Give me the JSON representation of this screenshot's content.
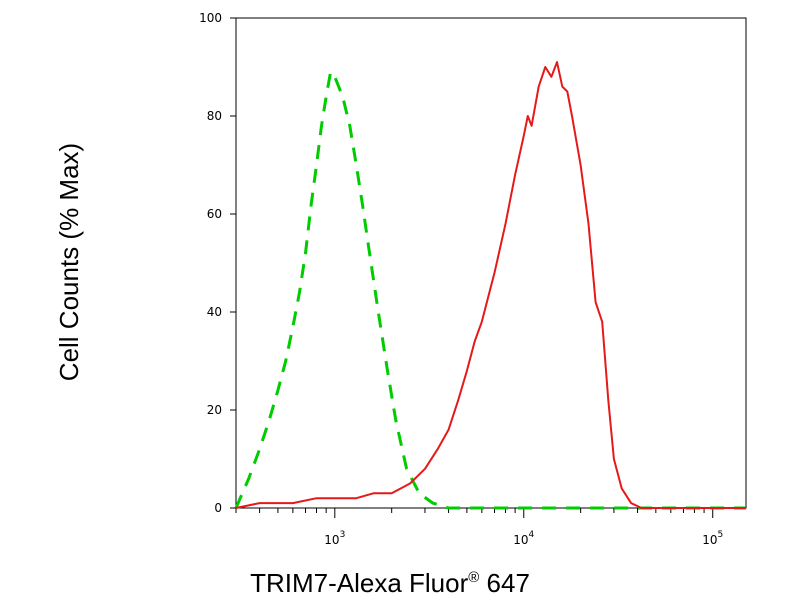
{
  "chart_data": {
    "type": "line",
    "title": "",
    "xlabel": "TRIM7-Alexa Fluor",
    "xlabel_mark": "®",
    "xlabel_suffix": " 647",
    "ylabel": "Cell Counts (% Max)",
    "x_scale": "log",
    "xlim": [
      300,
      150000
    ],
    "ylim": [
      0,
      100
    ],
    "grid": false,
    "legend": "none",
    "y_ticks": [
      0,
      20,
      40,
      60,
      80,
      100
    ],
    "x_ticks": [
      {
        "value": 1000,
        "base": "10",
        "exp": "3"
      },
      {
        "value": 10000,
        "base": "10",
        "exp": "4"
      },
      {
        "value": 100000,
        "base": "10",
        "exp": "5"
      }
    ],
    "series": [
      {
        "color": "#00cc00",
        "style": "dashed",
        "points": [
          [
            300,
            0
          ],
          [
            350,
            6
          ],
          [
            400,
            12
          ],
          [
            450,
            18
          ],
          [
            500,
            24
          ],
          [
            550,
            30
          ],
          [
            600,
            37
          ],
          [
            650,
            44
          ],
          [
            700,
            52
          ],
          [
            750,
            62
          ],
          [
            800,
            70
          ],
          [
            850,
            78
          ],
          [
            900,
            84
          ],
          [
            950,
            89
          ],
          [
            1000,
            88
          ],
          [
            1100,
            84
          ],
          [
            1200,
            78
          ],
          [
            1300,
            70
          ],
          [
            1400,
            62
          ],
          [
            1500,
            54
          ],
          [
            1700,
            40
          ],
          [
            1900,
            28
          ],
          [
            2100,
            18
          ],
          [
            2400,
            8
          ],
          [
            2800,
            3
          ],
          [
            3300,
            1
          ],
          [
            4000,
            0
          ],
          [
            5000,
            0
          ],
          [
            150000,
            0
          ]
        ]
      },
      {
        "color": "#e61919",
        "style": "solid",
        "points": [
          [
            300,
            0
          ],
          [
            400,
            1
          ],
          [
            500,
            1
          ],
          [
            600,
            1
          ],
          [
            800,
            2
          ],
          [
            1000,
            2
          ],
          [
            1300,
            2
          ],
          [
            1600,
            3
          ],
          [
            2000,
            3
          ],
          [
            2500,
            5
          ],
          [
            3000,
            8
          ],
          [
            3500,
            12
          ],
          [
            4000,
            16
          ],
          [
            4500,
            22
          ],
          [
            5000,
            28
          ],
          [
            5500,
            34
          ],
          [
            6000,
            38
          ],
          [
            7000,
            48
          ],
          [
            8000,
            58
          ],
          [
            9000,
            68
          ],
          [
            10000,
            76
          ],
          [
            10500,
            80
          ],
          [
            11000,
            78
          ],
          [
            12000,
            86
          ],
          [
            13000,
            90
          ],
          [
            14000,
            88
          ],
          [
            15000,
            91
          ],
          [
            16000,
            86
          ],
          [
            17000,
            85
          ],
          [
            18000,
            80
          ],
          [
            20000,
            70
          ],
          [
            22000,
            58
          ],
          [
            24000,
            42
          ],
          [
            26000,
            38
          ],
          [
            28000,
            22
          ],
          [
            30000,
            10
          ],
          [
            33000,
            4
          ],
          [
            37000,
            1
          ],
          [
            42000,
            0
          ],
          [
            150000,
            0
          ]
        ]
      }
    ]
  }
}
